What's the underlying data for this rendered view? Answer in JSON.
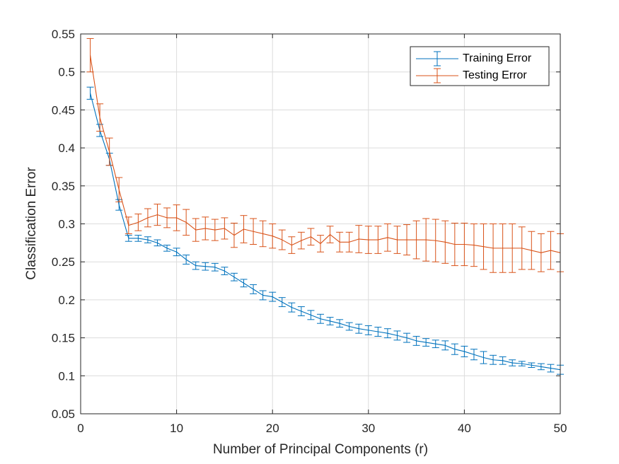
{
  "chart_data": {
    "type": "line",
    "title": "",
    "xlabel": "Number of Principal Components (r)",
    "ylabel": "Classification Error",
    "xlim": [
      0,
      50
    ],
    "ylim": [
      0.05,
      0.55
    ],
    "xticks": [
      0,
      10,
      20,
      30,
      40,
      50
    ],
    "xtick_labels": [
      "0",
      "10",
      "20",
      "30",
      "40",
      "50"
    ],
    "yticks": [
      0.05,
      0.1,
      0.15,
      0.2,
      0.25,
      0.3,
      0.35,
      0.4,
      0.45,
      0.5,
      0.55
    ],
    "ytick_labels": [
      "0.05",
      "0.1",
      "0.15",
      "0.2",
      "0.25",
      "0.3",
      "0.35",
      "0.4",
      "0.45",
      "0.5",
      "0.55"
    ],
    "grid": true,
    "legend_position": "top-right",
    "error_bars": true,
    "x": [
      1,
      2,
      3,
      4,
      5,
      6,
      7,
      8,
      9,
      10,
      11,
      12,
      13,
      14,
      15,
      16,
      17,
      18,
      19,
      20,
      21,
      22,
      23,
      24,
      25,
      26,
      27,
      28,
      29,
      30,
      31,
      32,
      33,
      34,
      35,
      36,
      37,
      38,
      39,
      40,
      41,
      42,
      43,
      44,
      45,
      46,
      47,
      48,
      49,
      50
    ],
    "series": [
      {
        "name": "Training Error",
        "color": "#0072BD",
        "values": [
          0.472,
          0.423,
          0.385,
          0.325,
          0.281,
          0.281,
          0.279,
          0.275,
          0.268,
          0.263,
          0.253,
          0.245,
          0.244,
          0.243,
          0.238,
          0.23,
          0.222,
          0.214,
          0.206,
          0.204,
          0.197,
          0.19,
          0.185,
          0.18,
          0.175,
          0.172,
          0.169,
          0.165,
          0.162,
          0.16,
          0.158,
          0.156,
          0.153,
          0.15,
          0.146,
          0.144,
          0.142,
          0.14,
          0.135,
          0.132,
          0.128,
          0.124,
          0.121,
          0.12,
          0.117,
          0.116,
          0.114,
          0.112,
          0.11,
          0.108
        ],
        "errors": [
          0.008,
          0.008,
          0.008,
          0.007,
          0.004,
          0.004,
          0.004,
          0.004,
          0.004,
          0.005,
          0.006,
          0.005,
          0.005,
          0.005,
          0.005,
          0.005,
          0.005,
          0.006,
          0.006,
          0.006,
          0.006,
          0.006,
          0.006,
          0.006,
          0.006,
          0.005,
          0.005,
          0.005,
          0.006,
          0.006,
          0.006,
          0.006,
          0.006,
          0.006,
          0.006,
          0.005,
          0.005,
          0.006,
          0.007,
          0.007,
          0.007,
          0.008,
          0.006,
          0.005,
          0.004,
          0.003,
          0.003,
          0.004,
          0.005,
          0.006
        ]
      },
      {
        "name": "Testing Error",
        "color": "#D95319",
        "values": [
          0.522,
          0.44,
          0.395,
          0.345,
          0.298,
          0.302,
          0.308,
          0.312,
          0.308,
          0.308,
          0.302,
          0.292,
          0.294,
          0.292,
          0.294,
          0.285,
          0.293,
          0.29,
          0.287,
          0.284,
          0.279,
          0.272,
          0.278,
          0.283,
          0.274,
          0.286,
          0.276,
          0.276,
          0.28,
          0.279,
          0.279,
          0.282,
          0.279,
          0.279,
          0.279,
          0.279,
          0.278,
          0.276,
          0.273,
          0.273,
          0.272,
          0.27,
          0.268,
          0.268,
          0.268,
          0.268,
          0.265,
          0.262,
          0.265,
          0.262
        ]
      }
    ]
  },
  "testing_errors": [
    0.022,
    0.018,
    0.018,
    0.016,
    0.011,
    0.011,
    0.012,
    0.014,
    0.013,
    0.017,
    0.017,
    0.015,
    0.015,
    0.014,
    0.014,
    0.016,
    0.018,
    0.017,
    0.017,
    0.016,
    0.013,
    0.011,
    0.011,
    0.011,
    0.011,
    0.011,
    0.013,
    0.013,
    0.018,
    0.018,
    0.018,
    0.018,
    0.018,
    0.02,
    0.025,
    0.028,
    0.028,
    0.028,
    0.028,
    0.028,
    0.028,
    0.03,
    0.032,
    0.032,
    0.032,
    0.028,
    0.025,
    0.025,
    0.025,
    0.025
  ]
}
